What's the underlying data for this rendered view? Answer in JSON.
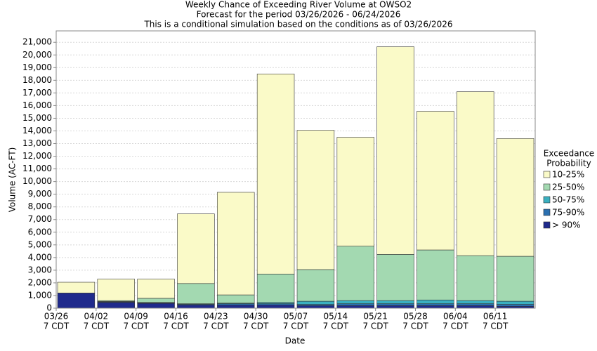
{
  "chart_data": {
    "type": "stacked_bar",
    "title": "Weekly Chance of Exceeding River Volume at OWSO2",
    "subtitle": "Forecast for the period 03/26/2026 - 06/24/2026",
    "subtitle2": "This is a conditional simulation based on the conditions as of 03/26/2026",
    "x_label": "Date",
    "y_label": "Volume (AC-FT)",
    "categories": [
      "03/26",
      "04/02",
      "04/09",
      "04/16",
      "04/23",
      "04/30",
      "05/07",
      "05/14",
      "05/21",
      "05/28",
      "06/04",
      "06/11"
    ],
    "category_sublabel": "7 CDT",
    "legend_title": [
      "Exceedance",
      "Probability"
    ],
    "legend": "right",
    "grid": true,
    "ylim": [
      0,
      21900
    ],
    "yticks": [
      0,
      {
        "value": 1000,
        "label": "1,000"
      },
      {
        "value": 2000,
        "label": "2,000"
      },
      {
        "value": 3000,
        "label": "3,000"
      },
      {
        "value": 4000,
        "label": "4,000"
      },
      {
        "value": 5000,
        "label": "5,000"
      },
      {
        "value": 6000,
        "label": "6,000"
      },
      {
        "value": 7000,
        "label": "7,000"
      },
      {
        "value": 8000,
        "label": "8,000"
      },
      {
        "value": 9000,
        "label": "9,000"
      },
      {
        "value": 10000,
        "label": "10,000"
      },
      {
        "value": 11000,
        "label": "11,000"
      },
      {
        "value": 12000,
        "label": "12,000"
      },
      {
        "value": 13000,
        "label": "13,000"
      },
      {
        "value": 14000,
        "label": "14,000"
      },
      {
        "value": 15000,
        "label": "15,000"
      },
      {
        "value": 16000,
        "label": "16,000"
      },
      {
        "value": 17000,
        "label": "17,000"
      },
      {
        "value": 18000,
        "label": "18,000"
      },
      {
        "value": 19000,
        "label": "19,000"
      },
      {
        "value": 20000,
        "label": "20,000"
      },
      {
        "value": 21000,
        "label": "21,000"
      }
    ],
    "series": [
      {
        "name": "> 90%",
        "color": "#1f2a8c",
        "values": [
          1200,
          450,
          380,
          250,
          250,
          250,
          200,
          200,
          200,
          200,
          200,
          150
        ]
      },
      {
        "name": "75-90%",
        "color": "#2a6fb0",
        "values": [
          0,
          50,
          40,
          60,
          100,
          100,
          100,
          150,
          150,
          150,
          150,
          150
        ]
      },
      {
        "name": "50-75%",
        "color": "#3ab0c0",
        "values": [
          0,
          30,
          30,
          40,
          50,
          100,
          250,
          250,
          250,
          300,
          250,
          250
        ]
      },
      {
        "name": "25-50%",
        "color": "#a3d9b1",
        "values": [
          0,
          70,
          330,
          1600,
          650,
          2250,
          2500,
          4300,
          3650,
          3950,
          3550,
          3550
        ]
      },
      {
        "name": "10-25%",
        "color": "#fafac8",
        "values": [
          850,
          1700,
          1520,
          5500,
          8100,
          15800,
          11000,
          8600,
          16400,
          10950,
          12950,
          9300
        ]
      }
    ]
  }
}
